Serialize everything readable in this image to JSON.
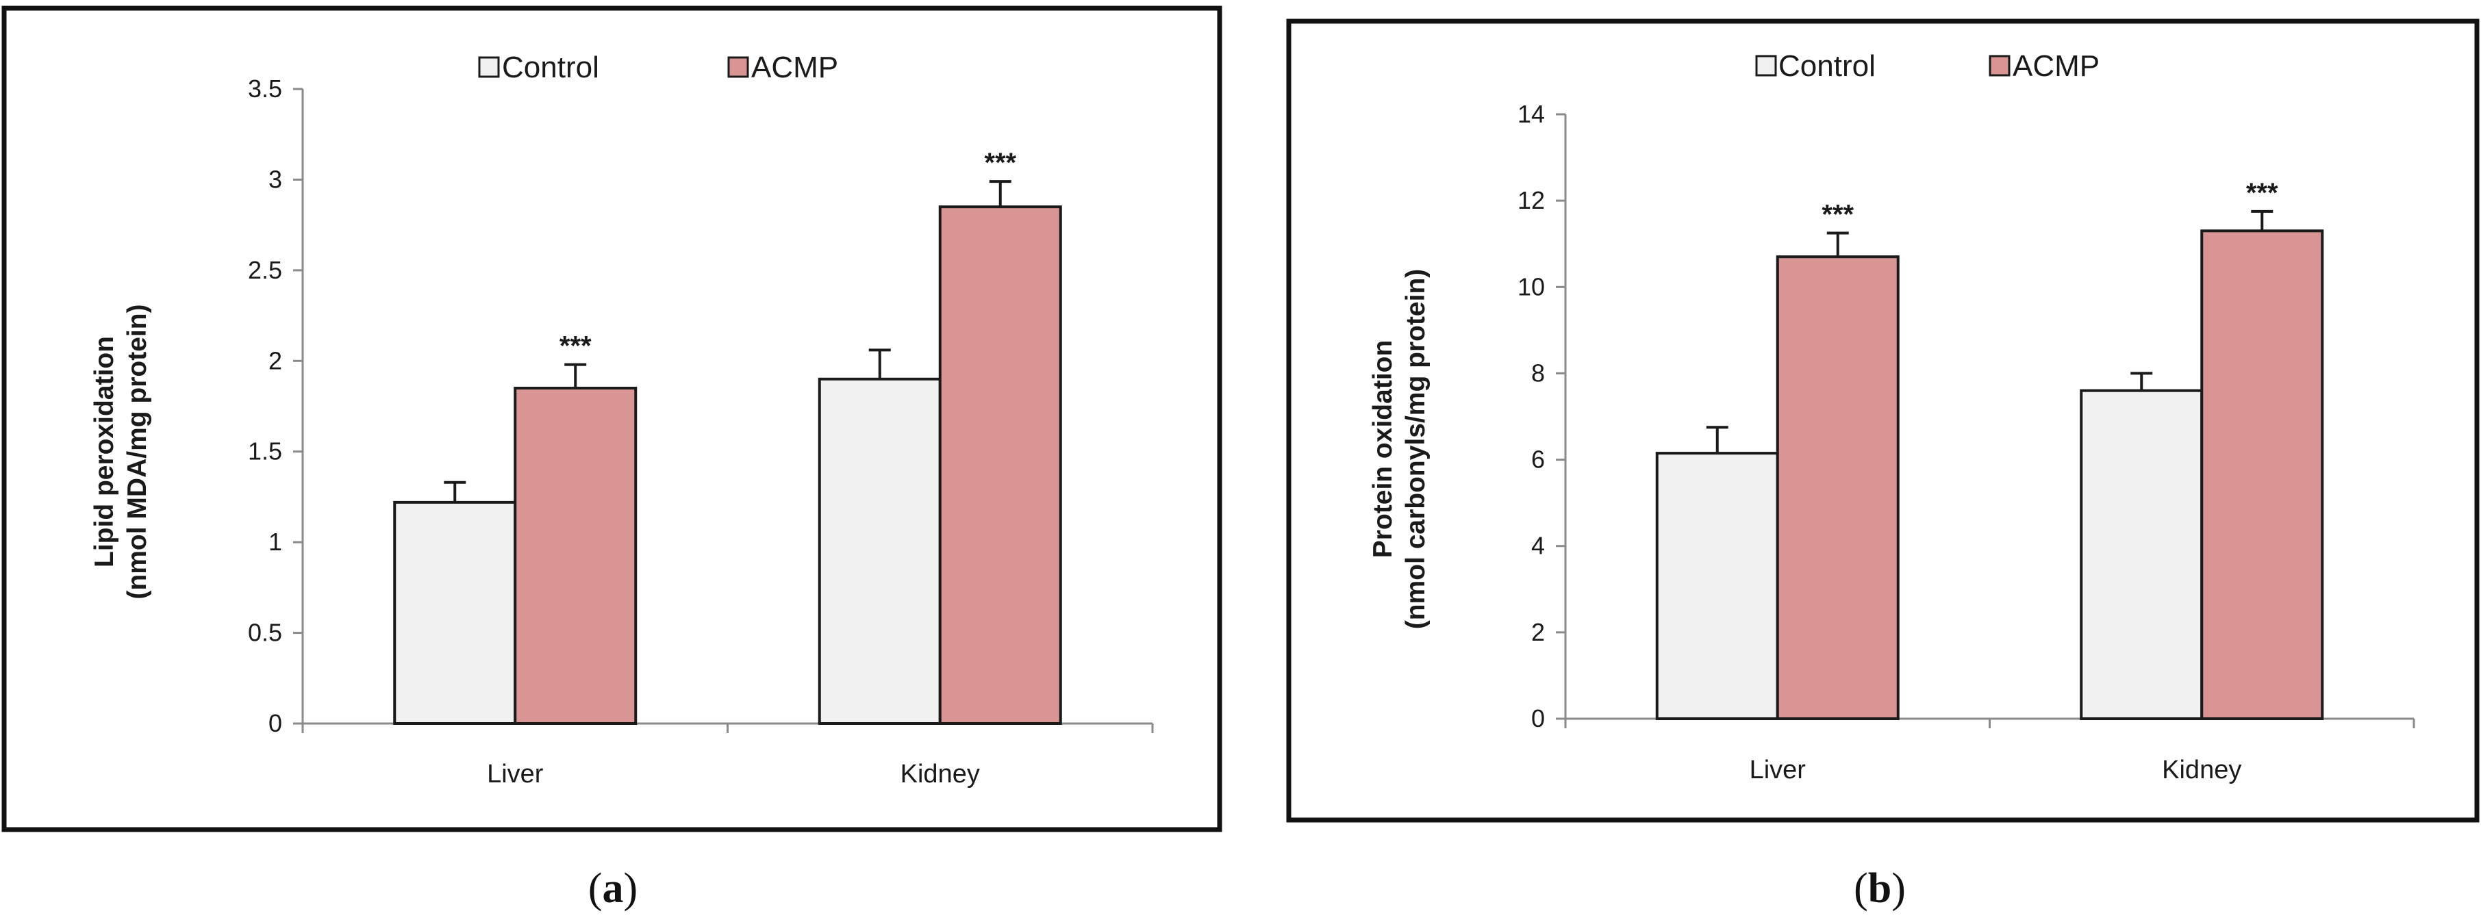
{
  "colors": {
    "control": "#f1f1f1",
    "acmp": "#d99594",
    "stroke": "#1a1a1a"
  },
  "chart_data": [
    {
      "type": "bar",
      "panel": "a",
      "caption_label": "a",
      "ylabel_line1": "Lipid peroxidation",
      "ylabel_line2": "(nmol MDA/mg protein)",
      "categories": [
        "Liver",
        "Kidney"
      ],
      "ylim": [
        0,
        3.5
      ],
      "yticks": [
        "0",
        "0.5",
        "1",
        "1.5",
        "2",
        "2.5",
        "3",
        "3.5"
      ],
      "legend": [
        "Control",
        "ACMP"
      ],
      "series": [
        {
          "name": "Control",
          "values": [
            1.22,
            1.9
          ],
          "errors": [
            0.11,
            0.16
          ],
          "sig": [
            "",
            ""
          ]
        },
        {
          "name": "ACMP",
          "values": [
            1.85,
            2.85
          ],
          "errors": [
            0.13,
            0.14
          ],
          "sig": [
            "***",
            "***"
          ]
        }
      ]
    },
    {
      "type": "bar",
      "panel": "b",
      "caption_label": "b",
      "ylabel_line1": "Protein oxidation",
      "ylabel_line2": "(nmol carbonyls/mg protein)",
      "categories": [
        "Liver",
        "Kidney"
      ],
      "ylim": [
        0,
        14
      ],
      "yticks": [
        "0",
        "2",
        "4",
        "6",
        "8",
        "10",
        "12",
        "14"
      ],
      "legend": [
        "Control",
        "ACMP"
      ],
      "series": [
        {
          "name": "Control",
          "values": [
            6.15,
            7.6
          ],
          "errors": [
            0.6,
            0.4
          ],
          "sig": [
            "",
            ""
          ]
        },
        {
          "name": "ACMP",
          "values": [
            10.7,
            11.3
          ],
          "errors": [
            0.55,
            0.45
          ],
          "sig": [
            "***",
            "***"
          ]
        }
      ]
    }
  ]
}
